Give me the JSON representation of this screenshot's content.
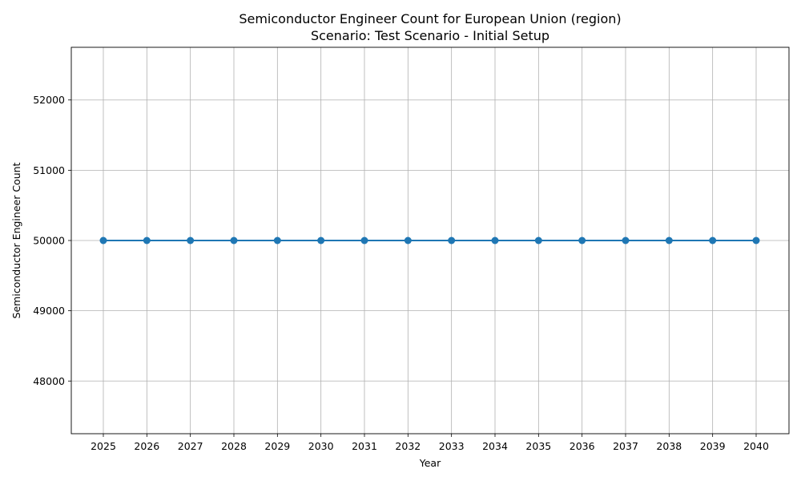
{
  "chart_data": {
    "type": "line",
    "title": "Semiconductor Engineer Count for European Union (region)",
    "subtitle": "Scenario: Test Scenario - Initial Setup",
    "xlabel": "Year",
    "ylabel": "Semiconductor Engineer Count",
    "x": [
      "2025",
      "2026",
      "2027",
      "2028",
      "2029",
      "2030",
      "2031",
      "2032",
      "2033",
      "2034",
      "2035",
      "2036",
      "2037",
      "2038",
      "2039",
      "2040"
    ],
    "series": [
      {
        "color": "#1f77b4",
        "marker": "circle",
        "values": [
          50000,
          50000,
          50000,
          50000,
          50000,
          50000,
          50000,
          50000,
          50000,
          50000,
          50000,
          50000,
          50000,
          50000,
          50000,
          50000
        ]
      }
    ],
    "ylim": [
      47250,
      52750
    ],
    "yticks": [
      48000,
      49000,
      50000,
      51000,
      52000
    ],
    "grid": true,
    "legend": "none"
  }
}
